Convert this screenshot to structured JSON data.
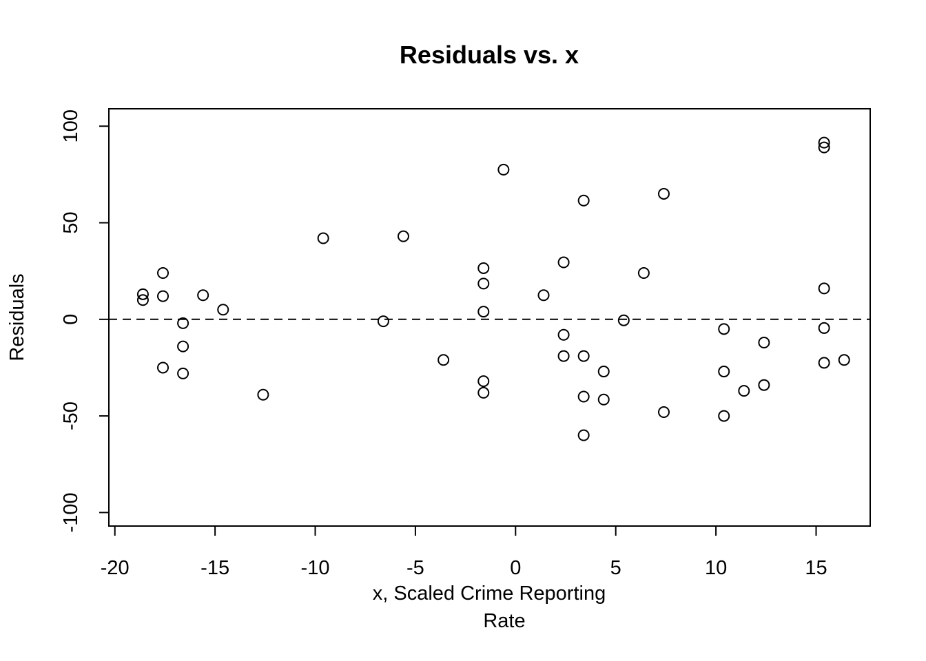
{
  "chart_data": {
    "type": "scatter",
    "title": "Residuals vs. x",
    "xlabel_line1": "x, Scaled Crime Reporting",
    "xlabel_line2": "Rate",
    "ylabel": "Residuals",
    "xlim": [
      -20.3,
      17.7
    ],
    "ylim": [
      -107,
      109
    ],
    "xticks": [
      -20,
      -15,
      -10,
      -5,
      0,
      5,
      10,
      15
    ],
    "xtick_labels": [
      "-20",
      "-15",
      "-10",
      "-5",
      "0",
      "5",
      "10",
      "15"
    ],
    "yticks": [
      -100,
      -50,
      0,
      50,
      100
    ],
    "ytick_labels": [
      "-100",
      "-50",
      "0",
      "50",
      "100"
    ],
    "reference_line": {
      "y": 0,
      "style": "dashed"
    },
    "grid": false,
    "points": [
      {
        "x": -18.6,
        "y": 13
      },
      {
        "x": -18.6,
        "y": 10
      },
      {
        "x": -17.6,
        "y": 24
      },
      {
        "x": -17.6,
        "y": 12
      },
      {
        "x": -17.6,
        "y": -25
      },
      {
        "x": -16.6,
        "y": -2
      },
      {
        "x": -16.6,
        "y": -14
      },
      {
        "x": -16.6,
        "y": -28
      },
      {
        "x": -15.6,
        "y": 12.5
      },
      {
        "x": -14.6,
        "y": 5
      },
      {
        "x": -12.6,
        "y": -39
      },
      {
        "x": -9.6,
        "y": 42
      },
      {
        "x": -6.6,
        "y": -1
      },
      {
        "x": -5.6,
        "y": 43
      },
      {
        "x": -3.6,
        "y": -21
      },
      {
        "x": -1.6,
        "y": 26.5
      },
      {
        "x": -1.6,
        "y": 18.5
      },
      {
        "x": -1.6,
        "y": 4
      },
      {
        "x": -1.6,
        "y": -32
      },
      {
        "x": -1.6,
        "y": -38
      },
      {
        "x": -0.6,
        "y": 77.5
      },
      {
        "x": 1.4,
        "y": 12.5
      },
      {
        "x": 2.4,
        "y": 29.5
      },
      {
        "x": 2.4,
        "y": -8
      },
      {
        "x": 2.4,
        "y": -19
      },
      {
        "x": 3.4,
        "y": 61.5
      },
      {
        "x": 3.4,
        "y": -19
      },
      {
        "x": 3.4,
        "y": -40
      },
      {
        "x": 3.4,
        "y": -60
      },
      {
        "x": 4.4,
        "y": -27
      },
      {
        "x": 4.4,
        "y": -41.5
      },
      {
        "x": 5.4,
        "y": -0.5
      },
      {
        "x": 6.4,
        "y": 24
      },
      {
        "x": 7.4,
        "y": 65
      },
      {
        "x": 7.4,
        "y": -48
      },
      {
        "x": 10.4,
        "y": -5
      },
      {
        "x": 10.4,
        "y": -27
      },
      {
        "x": 10.4,
        "y": -50
      },
      {
        "x": 11.4,
        "y": -37
      },
      {
        "x": 12.4,
        "y": -12
      },
      {
        "x": 12.4,
        "y": -34
      },
      {
        "x": 15.4,
        "y": 91.5
      },
      {
        "x": 15.4,
        "y": 89
      },
      {
        "x": 15.4,
        "y": 16
      },
      {
        "x": 15.4,
        "y": -4.5
      },
      {
        "x": 15.4,
        "y": -22.5
      },
      {
        "x": 16.4,
        "y": -21
      }
    ]
  }
}
